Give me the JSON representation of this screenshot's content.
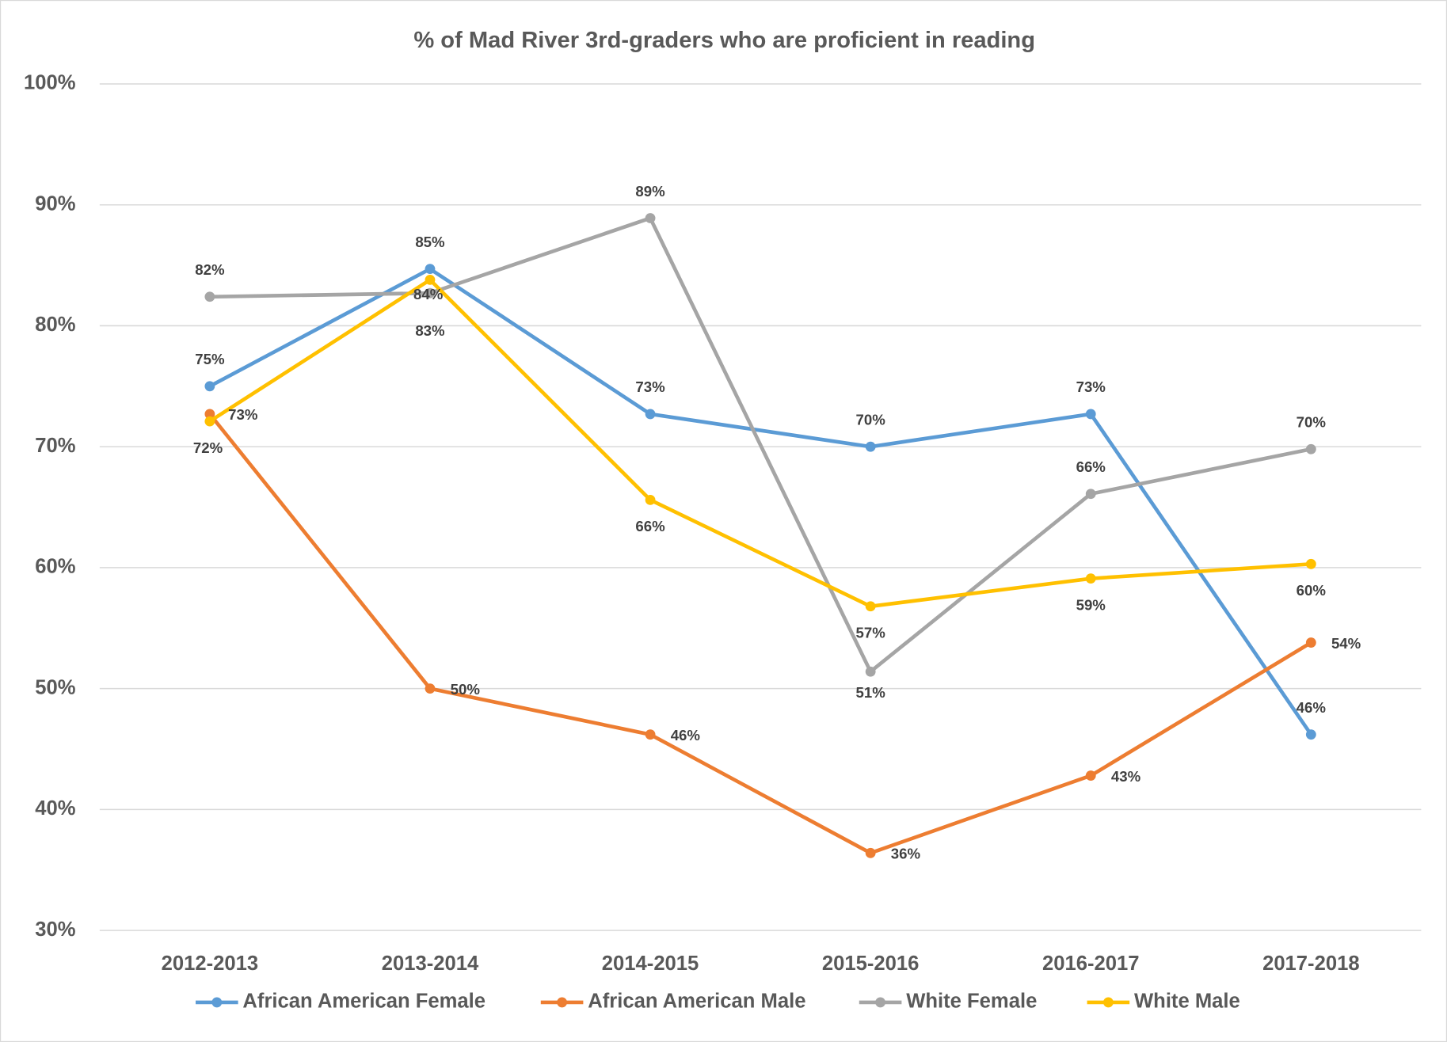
{
  "chart_data": {
    "type": "line",
    "title": "% of Mad River 3rd-graders who are proficient in reading",
    "categories": [
      "2012-2013",
      "2013-2014",
      "2014-2015",
      "2015-2016",
      "2016-2017",
      "2017-2018"
    ],
    "ylim": [
      30,
      100
    ],
    "yticks": [
      {
        "value": 30,
        "label": "30%"
      },
      {
        "value": 40,
        "label": "40%"
      },
      {
        "value": 50,
        "label": "50%"
      },
      {
        "value": 60,
        "label": "60%"
      },
      {
        "value": 70,
        "label": "70%"
      },
      {
        "value": 80,
        "label": "80%"
      },
      {
        "value": 90,
        "label": "90%"
      },
      {
        "value": 100,
        "label": "100%"
      }
    ],
    "grid": true,
    "legend": "bottom",
    "series": [
      {
        "name": "African American Female",
        "color": "#5b9bd5",
        "values": [
          75,
          84.7,
          72.7,
          70,
          72.7,
          46.2
        ],
        "value_labels": [
          "75%",
          "85%",
          "73%",
          "70%",
          "73%",
          "46%"
        ]
      },
      {
        "name": "African American Male",
        "color": "#ed7d31",
        "values": [
          72.7,
          50,
          46.2,
          36.4,
          42.8,
          53.8
        ],
        "value_labels": [
          "73%",
          "50%",
          "46%",
          "36%",
          "43%",
          "54%"
        ]
      },
      {
        "name": "White Female",
        "color": "#a5a5a5",
        "values": [
          82.4,
          82.7,
          88.9,
          51.4,
          66.1,
          69.8
        ],
        "value_labels": [
          "82%",
          "83%",
          "89%",
          "51%",
          "66%",
          "70%"
        ]
      },
      {
        "name": "White Male",
        "color": "#ffc000",
        "values": [
          72.1,
          83.8,
          65.6,
          56.8,
          59.1,
          60.3
        ],
        "value_labels": [
          "72%",
          "84%",
          "66%",
          "57%",
          "59%",
          "60%"
        ]
      }
    ]
  }
}
